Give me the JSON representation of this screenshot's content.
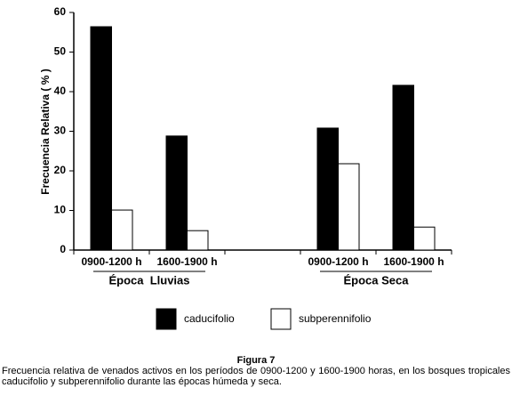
{
  "chart_data": {
    "type": "bar",
    "y_label": "Frecuencia Relativa ( % )",
    "categories": [
      "0900-1200 h",
      "1600-1900 h",
      null,
      "0900-1200 h",
      "1600-1900 h"
    ],
    "group_labels": [
      "Época  Lluvias",
      "Época Seca"
    ],
    "series": [
      {
        "name": "caducifolio",
        "color": "#000000",
        "values": [
          56.4,
          28.8,
          null,
          30.8,
          41.6
        ]
      },
      {
        "name": "subperennifolio",
        "color": "#ffffff",
        "values": [
          10.1,
          4.9,
          null,
          21.8,
          5.8
        ]
      }
    ],
    "ylim": [
      0,
      60
    ],
    "yticks": [
      0,
      10,
      20,
      30,
      40,
      50,
      60
    ],
    "grid": false
  },
  "caption": {
    "title": "Figura 7",
    "text": "Frecuencia relativa de venados activos en los períodos de 0900-1200 y 1600-1900 horas, en los bosques tropicales caducifolio y subperennifolio durante las épocas húmeda y seca."
  }
}
